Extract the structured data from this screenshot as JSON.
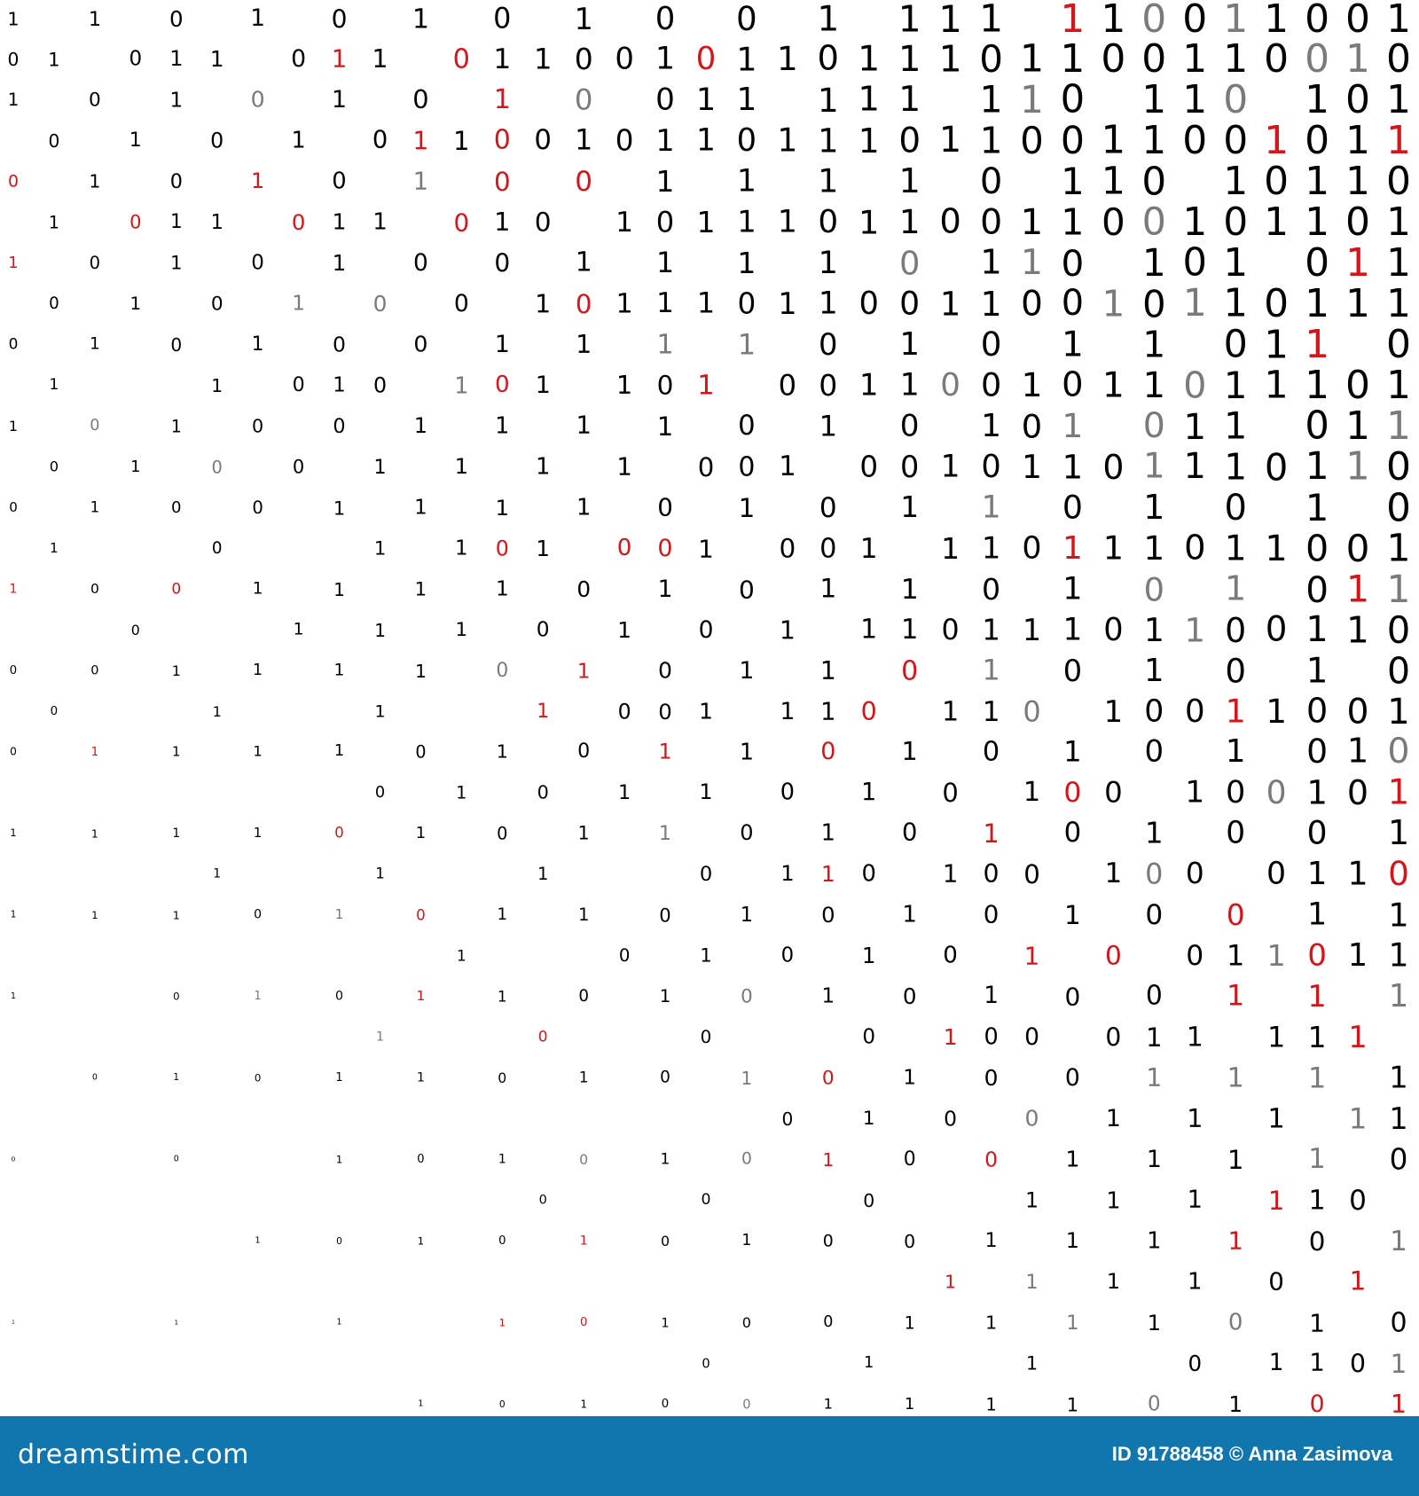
{
  "legend": {
    "0": "black 0",
    "1": "black 1",
    "a": "red 0",
    "b": "red 1",
    "c": "gray 0",
    "d": "gray 1",
    ".": "blank"
  },
  "colors": {
    "black": "#000000",
    "red": "#d7141a",
    "gray": "#7a7a7a",
    "footer": "#1176ae"
  },
  "rows": [
    "1.1.0.1.0.1.0.1.0.0.1.111.b1c0d1001",
    "01.011.0b1.a11001a11011101100110cd0",
    "1.0.1.c.1.0.b.c.011.111.1d0.11c.101",
    ".0.1.0.1.0b1a010110111011001100b01b",
    "a.1.0.b.0.d.a.a.1.1.1.1.0.110.10110",
    ".1.a11.a11.a10.1011101100110c101101",
    "b.0.1.0.1.0.0.1.1.1.1.c.1d0.101.0b1",
    ".0.1.0.d.c.0.1a111011001100d0d10111",
    "0.1.0.1.0.0.1.1.d.d.0.1.0.1.1.01b.0",
    ".1...1.010.da1.10b.0011c01011c11101",
    "1.c.1.0.0.1.1.1.1.0.1.0.10d.c11.01d",
    ".0.1.c.0.1.1.1.1.001.0010110d1101d0",
    "0.1.0.0.1.1.1.1.0.1.0.1.d.0.1.0.1.0",
    ".1...0...1.1a1.aa1.001.110b11011001",
    "b.0.a.1.1.1.1.0.1.0.1.1.0.1.c.d.0bd",
    "...0...1.1.1.0.1.0.1.11011101d00110",
    "0.0.1.1.1.1.c.b.0.1.1.a.d.0.1.0.1.0",
    ".0...1...1...b.001.11a.11c.100b1001",
    "0.b.1.1.1.0.1.0.b.1.a.1.0.1.0.1.01c",
    ".........0.1.0.1.1.0.1.0.1a0.10c10b",
    "1.1.1.1.a.1.0.1.d.0.1.0.b.0.1.0.0.1",
    ".....1...1...1...0.1b0.100.1c0.011a",
    "1.1.1.0.d.a.1.1.0.1.0.1.0.1.0.a.1.1",
    "...........1...0.1.0.1.0.b.a.01da11",
    "1...0.d.0.b.1.0.1.c.1.0.1.0.0.b.b.d",
    ".........d...a...0...0.b00.011.11b.",
    "..0.1.0.1.1.0.1.0.d.a.1.0.0.d.d.d.1",
    "...................0.1.0.c.1.1.1.d1",
    "0...0...1.0.1.c.1.c.b.0.a.1.1.1.d.0",
    ".............0...0...0...1.1.1.b10.",
    "......1.0.1.0.b.0.1.0.0.1.1.1.b.0.d",
    ".......................b.d.1.1.0.b.",
    "1...1...1...b.a.1.0.0.1.1.d.1.c.1.0",
    ".................0...1...1...0.110d",
    "..........1.0.1.0.c.1.1.1.1.c.1.a.b"
  ],
  "footer": {
    "logo": "dreamstime.com",
    "credit": "ID 91788458 © Anna Zasimova"
  }
}
